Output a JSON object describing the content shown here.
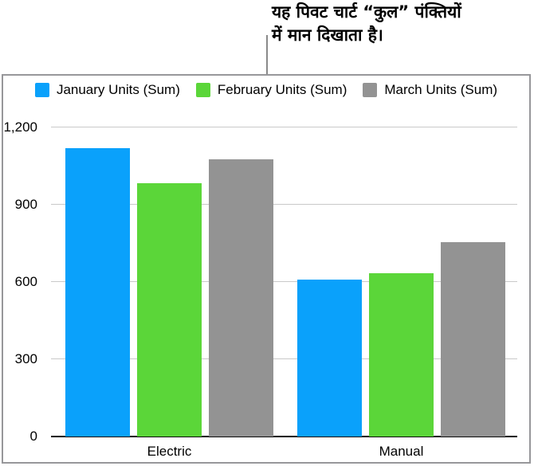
{
  "callout": {
    "line1": "यह पिवट चार्ट “कुल” पंक्तियों",
    "line2": "में मान दिखाता है।"
  },
  "colors": {
    "january_blue": "#0aa1fb",
    "february_green": "#5bd639",
    "march_gray": "#939393",
    "gridline": "#c9c9c9",
    "axis_line": "#0b0b0b",
    "chart_border": "#97979a",
    "callout_line": "#8a8a8a"
  },
  "chart_data": {
    "type": "bar",
    "title": "",
    "xlabel": "",
    "ylabel": "",
    "categories": [
      "Electric",
      "Manual"
    ],
    "series": [
      {
        "name": "January Units (Sum)",
        "color": "#0aa1fb",
        "values": [
          1120,
          610
        ]
      },
      {
        "name": "February Units (Sum)",
        "color": "#5bd639",
        "values": [
          985,
          635
        ]
      },
      {
        "name": "March Units (Sum)",
        "color": "#939393",
        "values": [
          1075,
          755
        ]
      }
    ],
    "ylim": [
      0,
      1200
    ],
    "yticks": [
      0,
      300,
      600,
      900,
      1200
    ],
    "ytick_labels": [
      "0",
      "300",
      "600",
      "900",
      "1,200"
    ],
    "grid": true,
    "legend_position": "top"
  }
}
